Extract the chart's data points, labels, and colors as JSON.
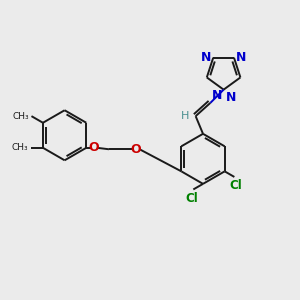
{
  "bg_color": "#ebebeb",
  "bond_color": "#1a1a1a",
  "n_color": "#0000cc",
  "o_color": "#cc0000",
  "cl_color": "#008000",
  "h_color": "#4a9090",
  "fig_w": 3.0,
  "fig_h": 3.0,
  "dpi": 100,
  "xlim": [
    0,
    10
  ],
  "ylim": [
    0,
    10
  ]
}
